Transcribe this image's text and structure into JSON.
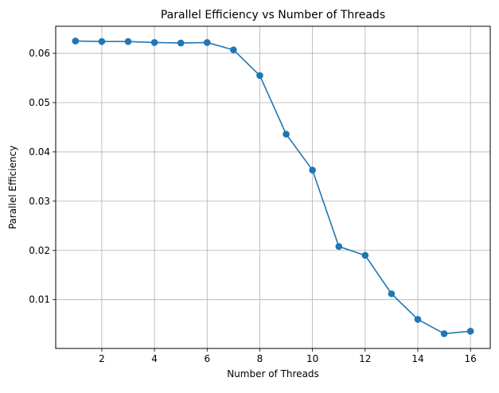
{
  "chart_data": {
    "type": "line",
    "title": "Parallel Efficiency vs Number of Threads",
    "xlabel": "Number of Threads",
    "ylabel": "Parallel Efficiency",
    "xlim": [
      0.25,
      16.75
    ],
    "ylim": [
      0.0001,
      0.0655
    ],
    "xticks": [
      2,
      4,
      6,
      8,
      10,
      12,
      14,
      16
    ],
    "xtick_labels": [
      "2",
      "4",
      "6",
      "8",
      "10",
      "12",
      "14",
      "16"
    ],
    "yticks": [
      0.01,
      0.02,
      0.03,
      0.04,
      0.05,
      0.06
    ],
    "ytick_labels": [
      "0.01",
      "0.02",
      "0.03",
      "0.04",
      "0.05",
      "0.06"
    ],
    "grid": true,
    "legend": null,
    "series": [
      {
        "color": "#1f77b4",
        "marker": "circle",
        "x": [
          1,
          2,
          3,
          4,
          5,
          6,
          7,
          8,
          9,
          10,
          11,
          12,
          13,
          14,
          15,
          16
        ],
        "y": [
          0.0625,
          0.0624,
          0.0624,
          0.0622,
          0.0621,
          0.0622,
          0.0607,
          0.0555,
          0.0436,
          0.0363,
          0.0208,
          0.019,
          0.0112,
          0.006,
          0.0031,
          0.0036
        ]
      }
    ]
  }
}
